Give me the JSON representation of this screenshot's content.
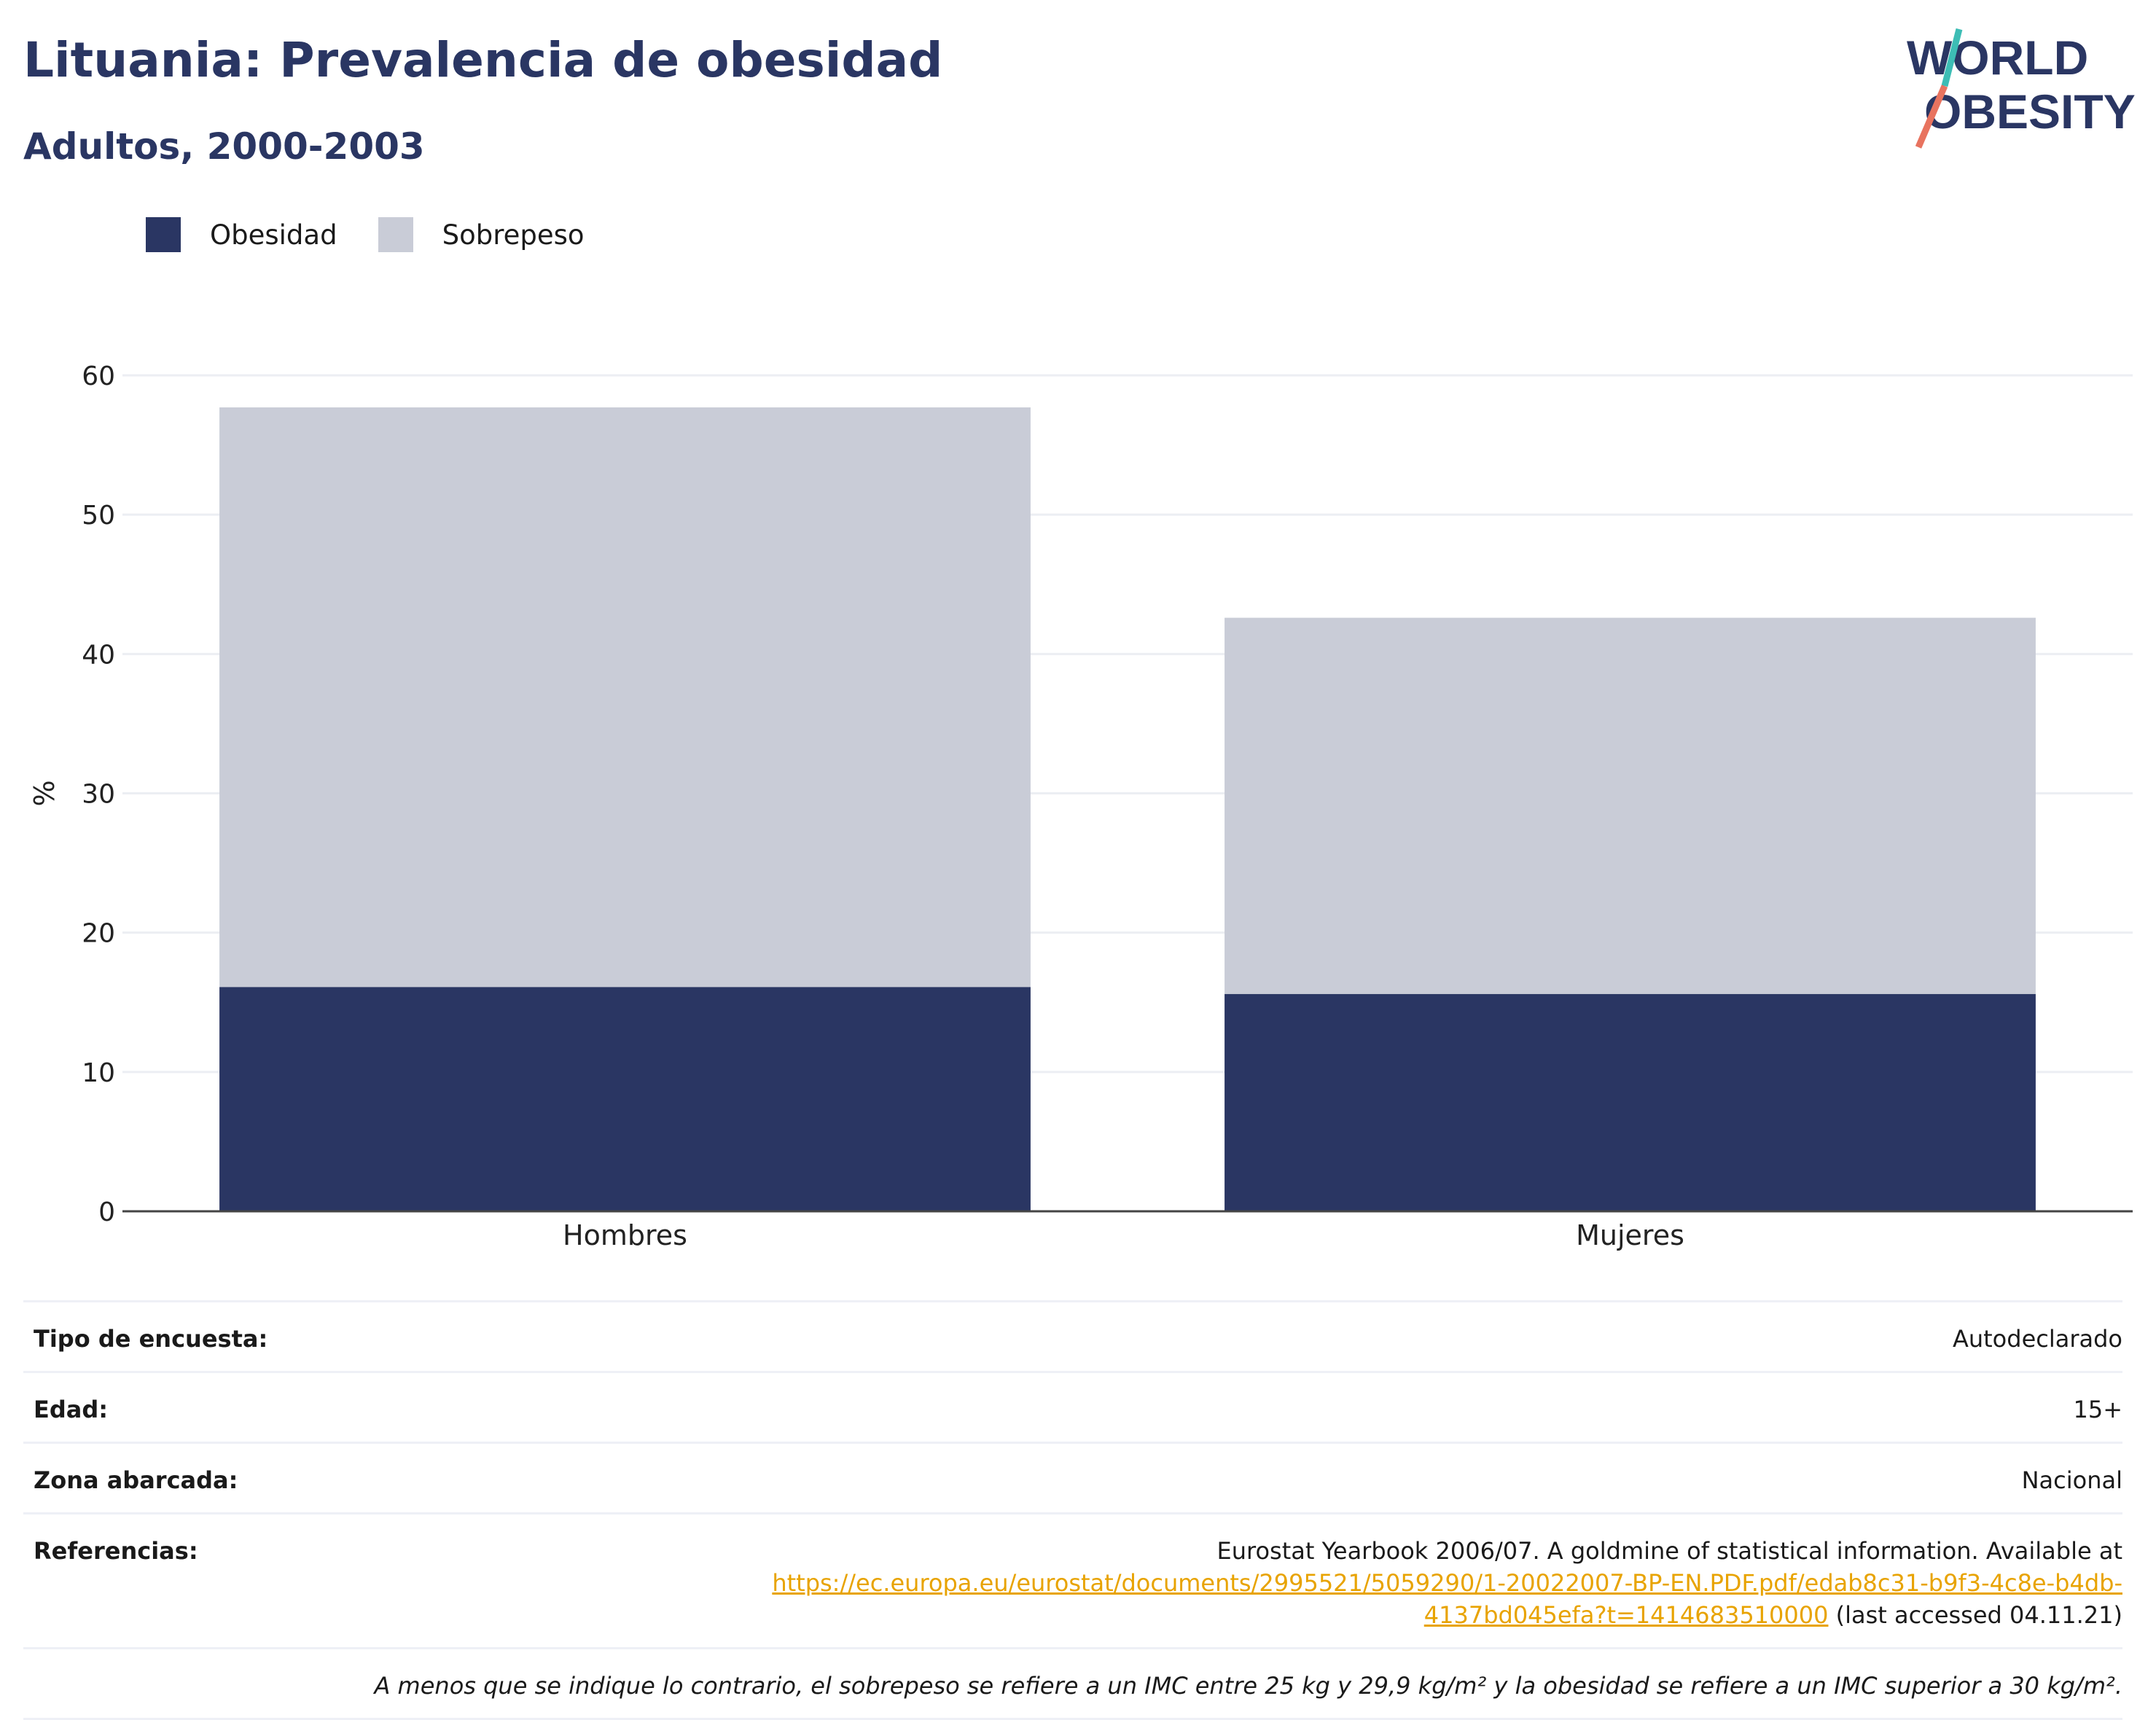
{
  "header": {
    "title": "Lituania: Prevalencia de obesidad",
    "subtitle": "Adultos, 2000-2003"
  },
  "logo": {
    "line1": "WORLD",
    "line2": "OBESITY"
  },
  "colors": {
    "obesity": "#2a3663",
    "overweight": "#c9ccd7",
    "title": "#2a3663",
    "link": "#e8a300",
    "logo_teal": "#3dbdb5",
    "logo_coral": "#e8735f"
  },
  "chart_data": {
    "type": "bar",
    "stacked": true,
    "categories": [
      "Hombres",
      "Mujeres"
    ],
    "series": [
      {
        "name": "Obesidad",
        "values": [
          16.1,
          15.6
        ],
        "color": "#2a3663"
      },
      {
        "name": "Sobrepeso",
        "values": [
          41.6,
          27.0
        ],
        "color": "#c9ccd7"
      }
    ],
    "ylabel": "%",
    "ylim": [
      0,
      60
    ],
    "yticks": [
      0,
      10,
      20,
      30,
      40,
      50,
      60
    ],
    "grid": true,
    "legend_position": "top-left"
  },
  "meta": {
    "survey_label": "Tipo de encuesta:",
    "survey_value": "Autodeclarado",
    "age_label": "Edad:",
    "age_value": "15+",
    "area_label": "Zona abarcada:",
    "area_value": "Nacional",
    "refs_label": "Referencias:",
    "refs_text": "Eurostat Yearbook 2006/07. A goldmine of statistical information. Available at",
    "refs_link": "https://ec.europa.eu/eurostat/documents/2995521/5059290/1-20022007-BP-EN.PDF.pdf/edab8c31-b9f3-4c8e-b4db-4137bd045efa?t=1414683510000",
    "refs_suffix": "(last accessed 04.11.21)",
    "note": "A menos que se indique lo contrario, el sobrepeso se refiere a un IMC entre 25 kg y 29,9 kg/m² y la obesidad se refiere a un IMC superior a 30 kg/m²."
  }
}
